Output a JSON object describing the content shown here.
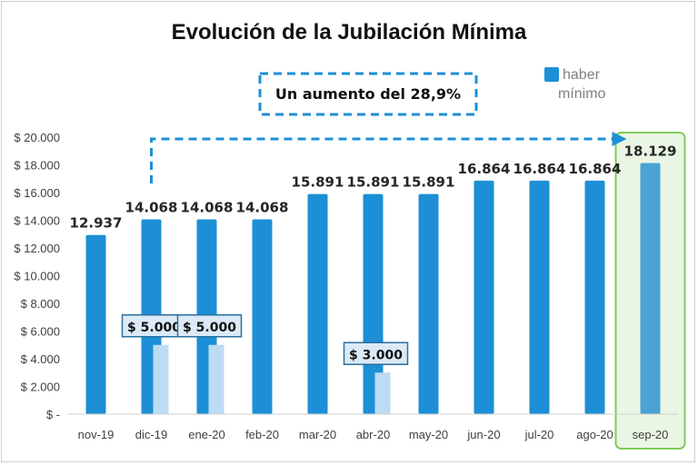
{
  "chart_data": {
    "type": "bar",
    "title": "Evolución de la Jubilación Mínima",
    "xlabel": "",
    "ylabel": "",
    "categories": [
      "nov-19",
      "dic-19",
      "ene-20",
      "feb-20",
      "mar-20",
      "abr-20",
      "may-20",
      "jun-20",
      "jul-20",
      "ago-20",
      "sep-20"
    ],
    "series": [
      {
        "name": "haber mínimo",
        "values": [
          12937,
          14068,
          14068,
          14068,
          15891,
          15891,
          15891,
          16864,
          16864,
          16864,
          18129
        ],
        "labels": [
          "12.937",
          "14.068",
          "14.068",
          "14.068",
          "15.891",
          "15.891",
          "15.891",
          "16.864",
          "16.864",
          "16.864",
          "18.129"
        ],
        "color": "#1c8fd6"
      }
    ],
    "bonus": {
      "values": [
        null,
        5000,
        5000,
        null,
        null,
        3000,
        null,
        null,
        null,
        null,
        null
      ],
      "labels": [
        "",
        "$ 5.000",
        "$ 5.000",
        "",
        "",
        "$ 3.000",
        "",
        "",
        "",
        "",
        ""
      ],
      "color": "#bcdcf3",
      "label_box_color": "#dbeaf6",
      "label_border_color": "#2a6f9e"
    },
    "ylim": [
      0,
      20000
    ],
    "yticks": [
      0,
      2000,
      4000,
      6000,
      8000,
      10000,
      12000,
      14000,
      16000,
      18000,
      20000
    ],
    "ytick_labels": [
      "$ -",
      "$ 2.000",
      "$ 4.000",
      "$ 6.000",
      "$ 8.000",
      "$ 10.000",
      "$ 12.000",
      "$ 14.000",
      "$ 16.000",
      "$ 18.000",
      "$ 20.000"
    ],
    "grid": false,
    "legend": {
      "placement": "top-right",
      "text_line1": "haber",
      "text_line2": "mínimo"
    },
    "annotation": {
      "text": "Un aumento del 28,9%",
      "color": "#1c8fd6",
      "from": "dic-19",
      "to": "sep-20"
    },
    "highlight": {
      "category": "sep-20",
      "color": "#7fcb5b",
      "fill": "#eaf6e4",
      "bar_color": "#4aa3d3"
    }
  }
}
